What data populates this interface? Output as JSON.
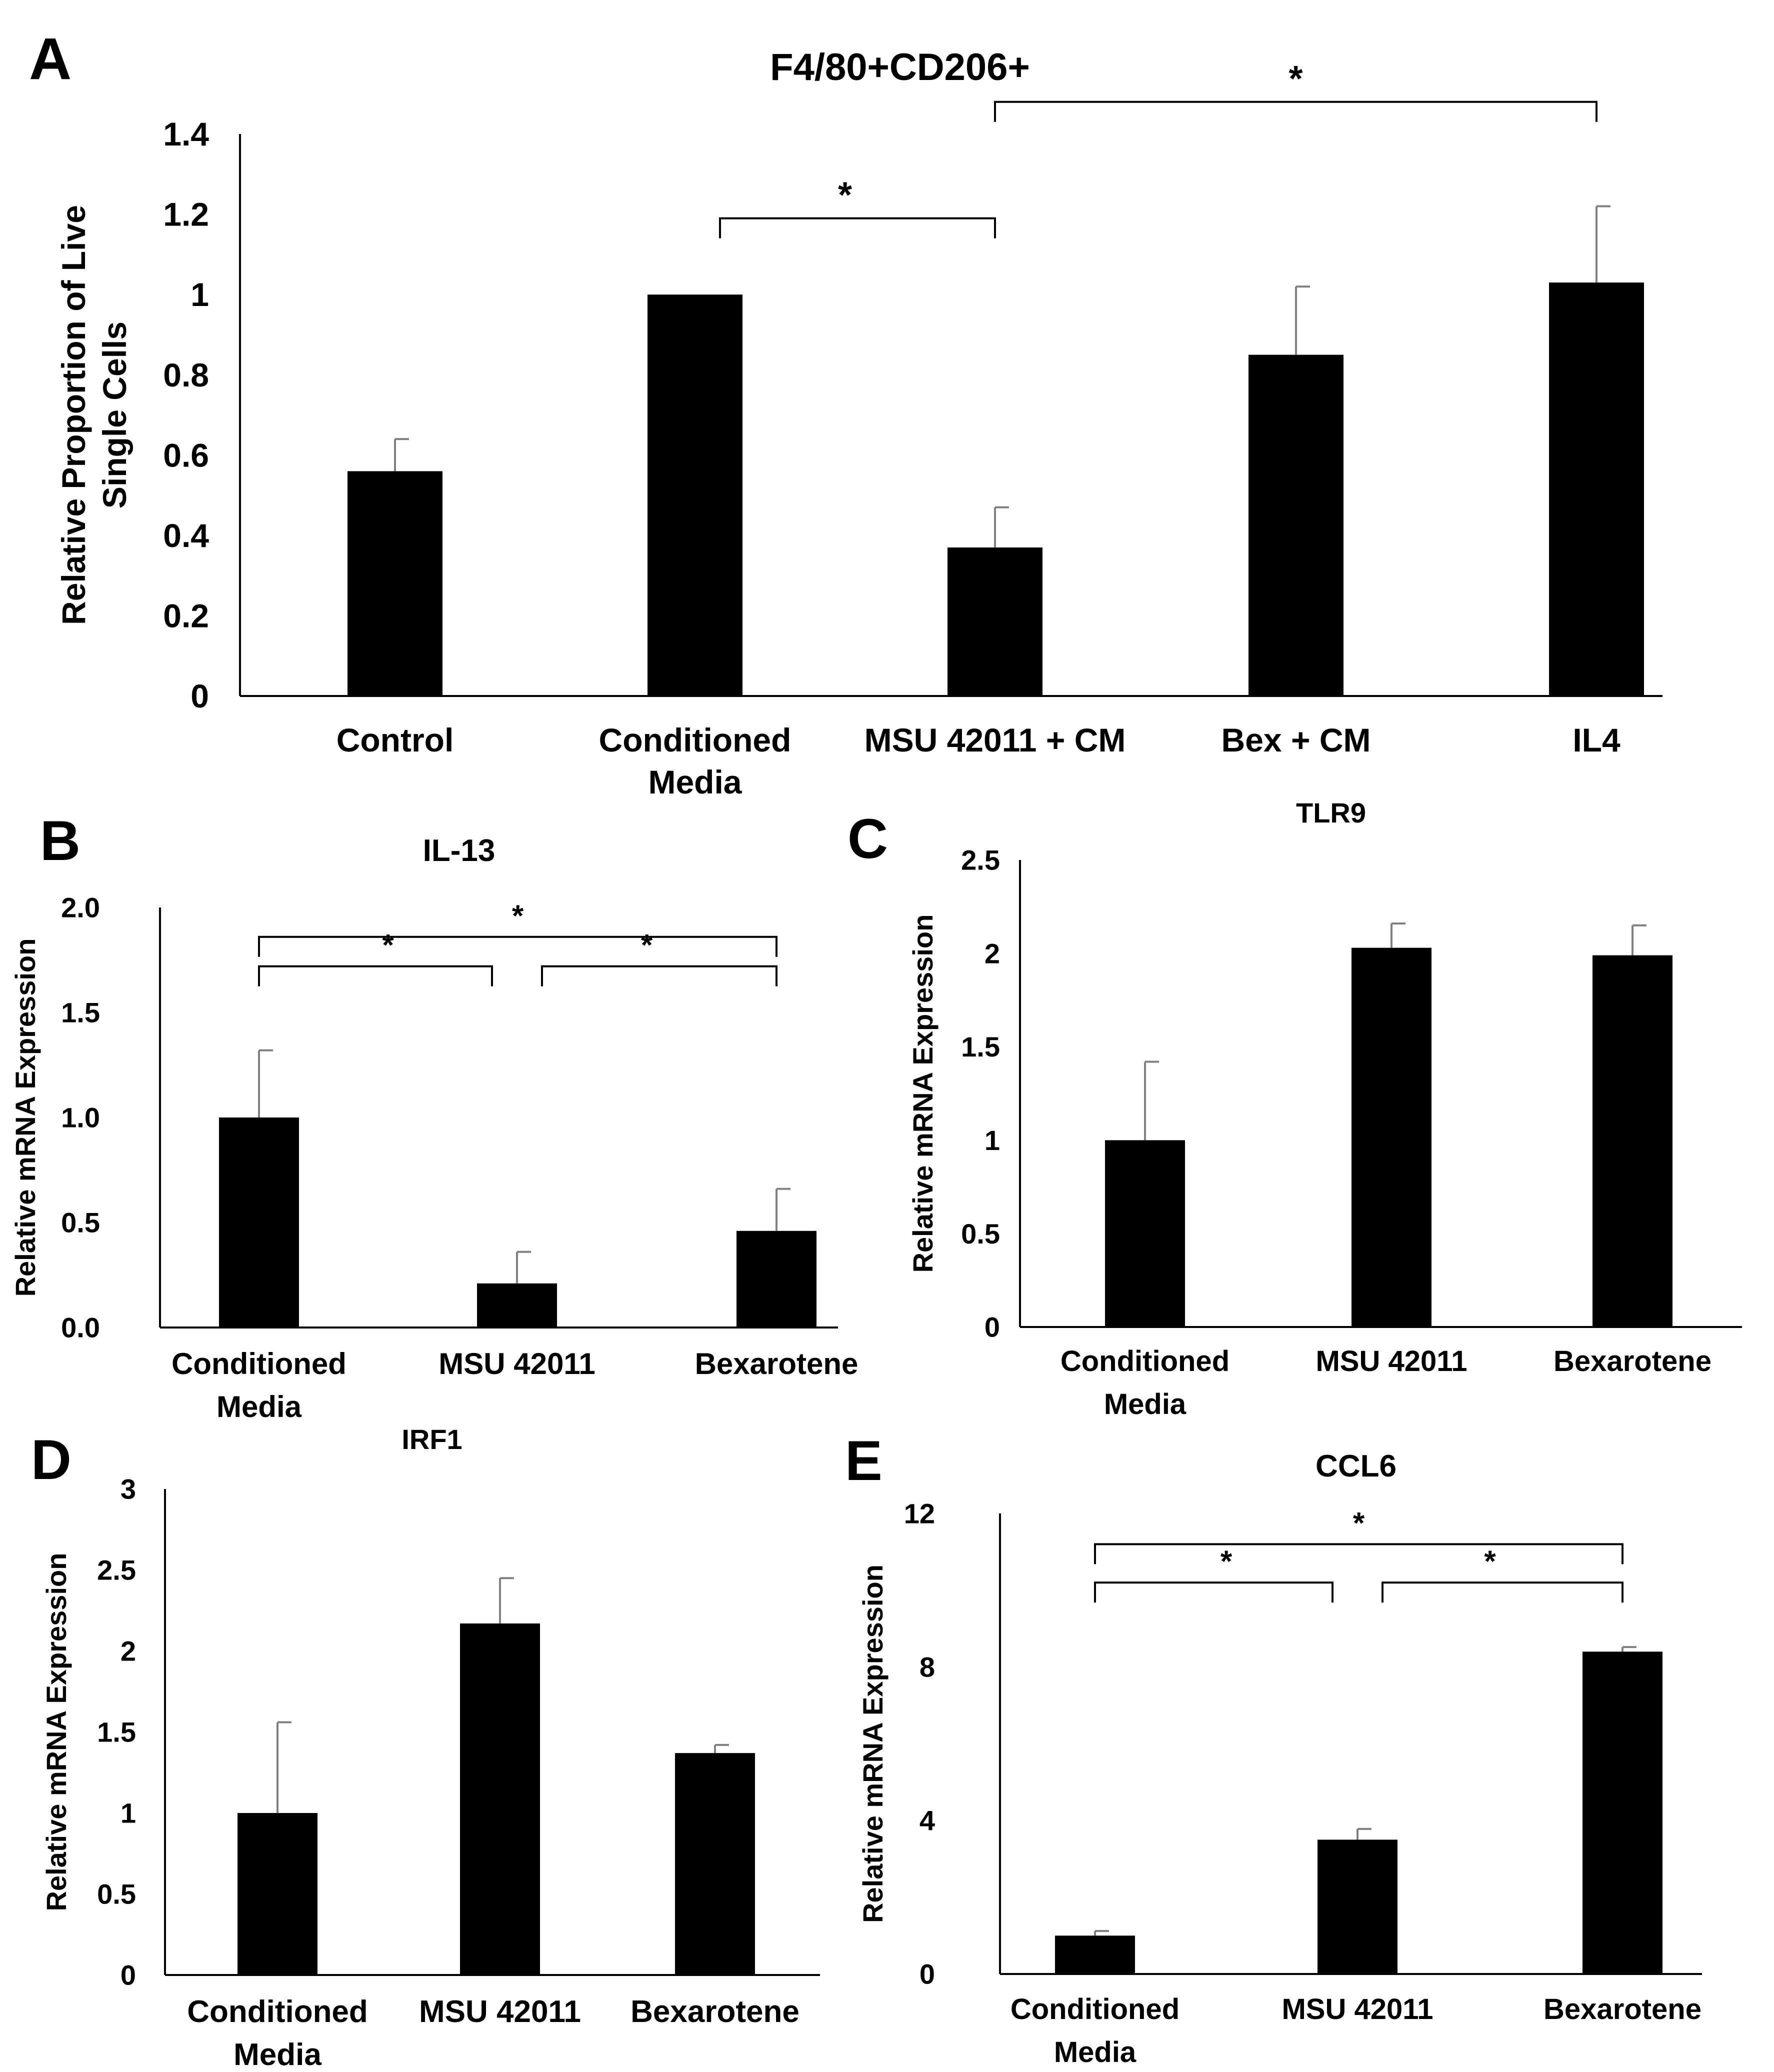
{
  "colors": {
    "bar": "#000000",
    "axis": "#000000",
    "error": "#808080",
    "text": "#000000"
  },
  "chart_data": [
    {
      "id": "A",
      "panel_label": "A",
      "type": "bar",
      "title": "F4/80+CD206+",
      "ylabel_lines": [
        "Relative Proportion of Live",
        "Single Cells"
      ],
      "xlabel": "",
      "categories": [
        "Control",
        "Conditioned Media",
        "MSU 42011 + CM",
        "Bex + CM",
        "IL4"
      ],
      "category_lines": [
        [
          "Control"
        ],
        [
          "Conditioned",
          "Media"
        ],
        [
          "MSU 42011 + CM"
        ],
        [
          "Bex + CM"
        ],
        [
          "IL4"
        ]
      ],
      "values": [
        0.56,
        1.0,
        0.37,
        0.85,
        1.03
      ],
      "errors": [
        0.08,
        0.0,
        0.1,
        0.17,
        0.19
      ],
      "ylim": [
        0,
        1.4
      ],
      "yticks": [
        "0",
        "0.2",
        "0.4",
        "0.6",
        "0.8",
        "1",
        "1.2",
        "1.4"
      ],
      "grid": false,
      "significance": [
        {
          "from": 1,
          "to": 2,
          "level": 1.19,
          "label": "*"
        },
        {
          "from": 2,
          "to": 4,
          "level": 1.48,
          "label": "*"
        }
      ]
    },
    {
      "id": "B",
      "panel_label": "B",
      "type": "bar",
      "title": "IL-13",
      "ylabel_lines": [
        "Relative mRNA Expression"
      ],
      "xlabel": "",
      "categories": [
        "Conditioned Media",
        "MSU 42011",
        "Bexarotene"
      ],
      "category_lines": [
        [
          "Conditioned",
          "Media"
        ],
        [
          "MSU 42011"
        ],
        [
          "Bexarotene"
        ]
      ],
      "values": [
        1.0,
        0.21,
        0.46
      ],
      "errors": [
        0.32,
        0.15,
        0.2
      ],
      "ylim": [
        0,
        2.0
      ],
      "yticks": [
        "0.0",
        "0.5",
        "1.0",
        "1.5",
        "2.0"
      ],
      "grid": false,
      "significance": [
        {
          "from": 0,
          "to": 2,
          "level": 1.86,
          "label": "*"
        },
        {
          "from": 0,
          "to": 1,
          "level": 1.72,
          "label": "*"
        },
        {
          "from": 1,
          "to": 2,
          "level": 1.72,
          "label": "*"
        }
      ]
    },
    {
      "id": "C",
      "panel_label": "C",
      "type": "bar",
      "title": "TLR9",
      "ylabel_lines": [
        "Relative mRNA Expression"
      ],
      "xlabel": "",
      "categories": [
        "Conditioned Media",
        "MSU 42011",
        "Bexarotene"
      ],
      "category_lines": [
        [
          "Conditioned",
          "Media"
        ],
        [
          "MSU 42011"
        ],
        [
          "Bexarotene"
        ]
      ],
      "values": [
        1.0,
        2.03,
        1.99
      ],
      "errors": [
        0.42,
        0.13,
        0.16
      ],
      "ylim": [
        0,
        2.5
      ],
      "yticks": [
        "0",
        "0.5",
        "1",
        "1.5",
        "2",
        "2.5"
      ],
      "grid": false,
      "significance": []
    },
    {
      "id": "D",
      "panel_label": "D",
      "type": "bar",
      "title": "IRF1",
      "ylabel_lines": [
        "Relative mRNA Expression"
      ],
      "xlabel": "",
      "categories": [
        "Conditioned Media",
        "MSU 42011",
        "Bexarotene"
      ],
      "category_lines": [
        [
          "Conditioned",
          "Media"
        ],
        [
          "MSU 42011"
        ],
        [
          "Bexarotene"
        ]
      ],
      "values": [
        1.0,
        2.17,
        1.37
      ],
      "errors": [
        0.56,
        0.28,
        0.05
      ],
      "ylim": [
        0,
        3
      ],
      "yticks": [
        "0",
        "0.5",
        "1",
        "1.5",
        "2",
        "2.5",
        "3"
      ],
      "grid": false,
      "significance": []
    },
    {
      "id": "E",
      "panel_label": "E",
      "type": "bar",
      "title": "CCL6",
      "ylabel_lines": [
        "Relative mRNA Expression"
      ],
      "xlabel": "",
      "categories": [
        "Conditioned Media",
        "MSU 42011",
        "Bexarotene"
      ],
      "category_lines": [
        [
          "Conditioned",
          "Media"
        ],
        [
          "MSU 42011"
        ],
        [
          "Bexarotene"
        ]
      ],
      "values": [
        1.0,
        3.5,
        8.4
      ],
      "errors": [
        0.12,
        0.28,
        0.12
      ],
      "ylim": [
        0,
        12
      ],
      "yticks": [
        "0",
        "4",
        "8",
        "12"
      ],
      "grid": false,
      "significance": [
        {
          "from": 0,
          "to": 2,
          "level": 11.2,
          "label": "*"
        },
        {
          "from": 0,
          "to": 1,
          "level": 10.2,
          "label": "*"
        },
        {
          "from": 1,
          "to": 2,
          "level": 10.2,
          "label": "*"
        }
      ]
    }
  ]
}
